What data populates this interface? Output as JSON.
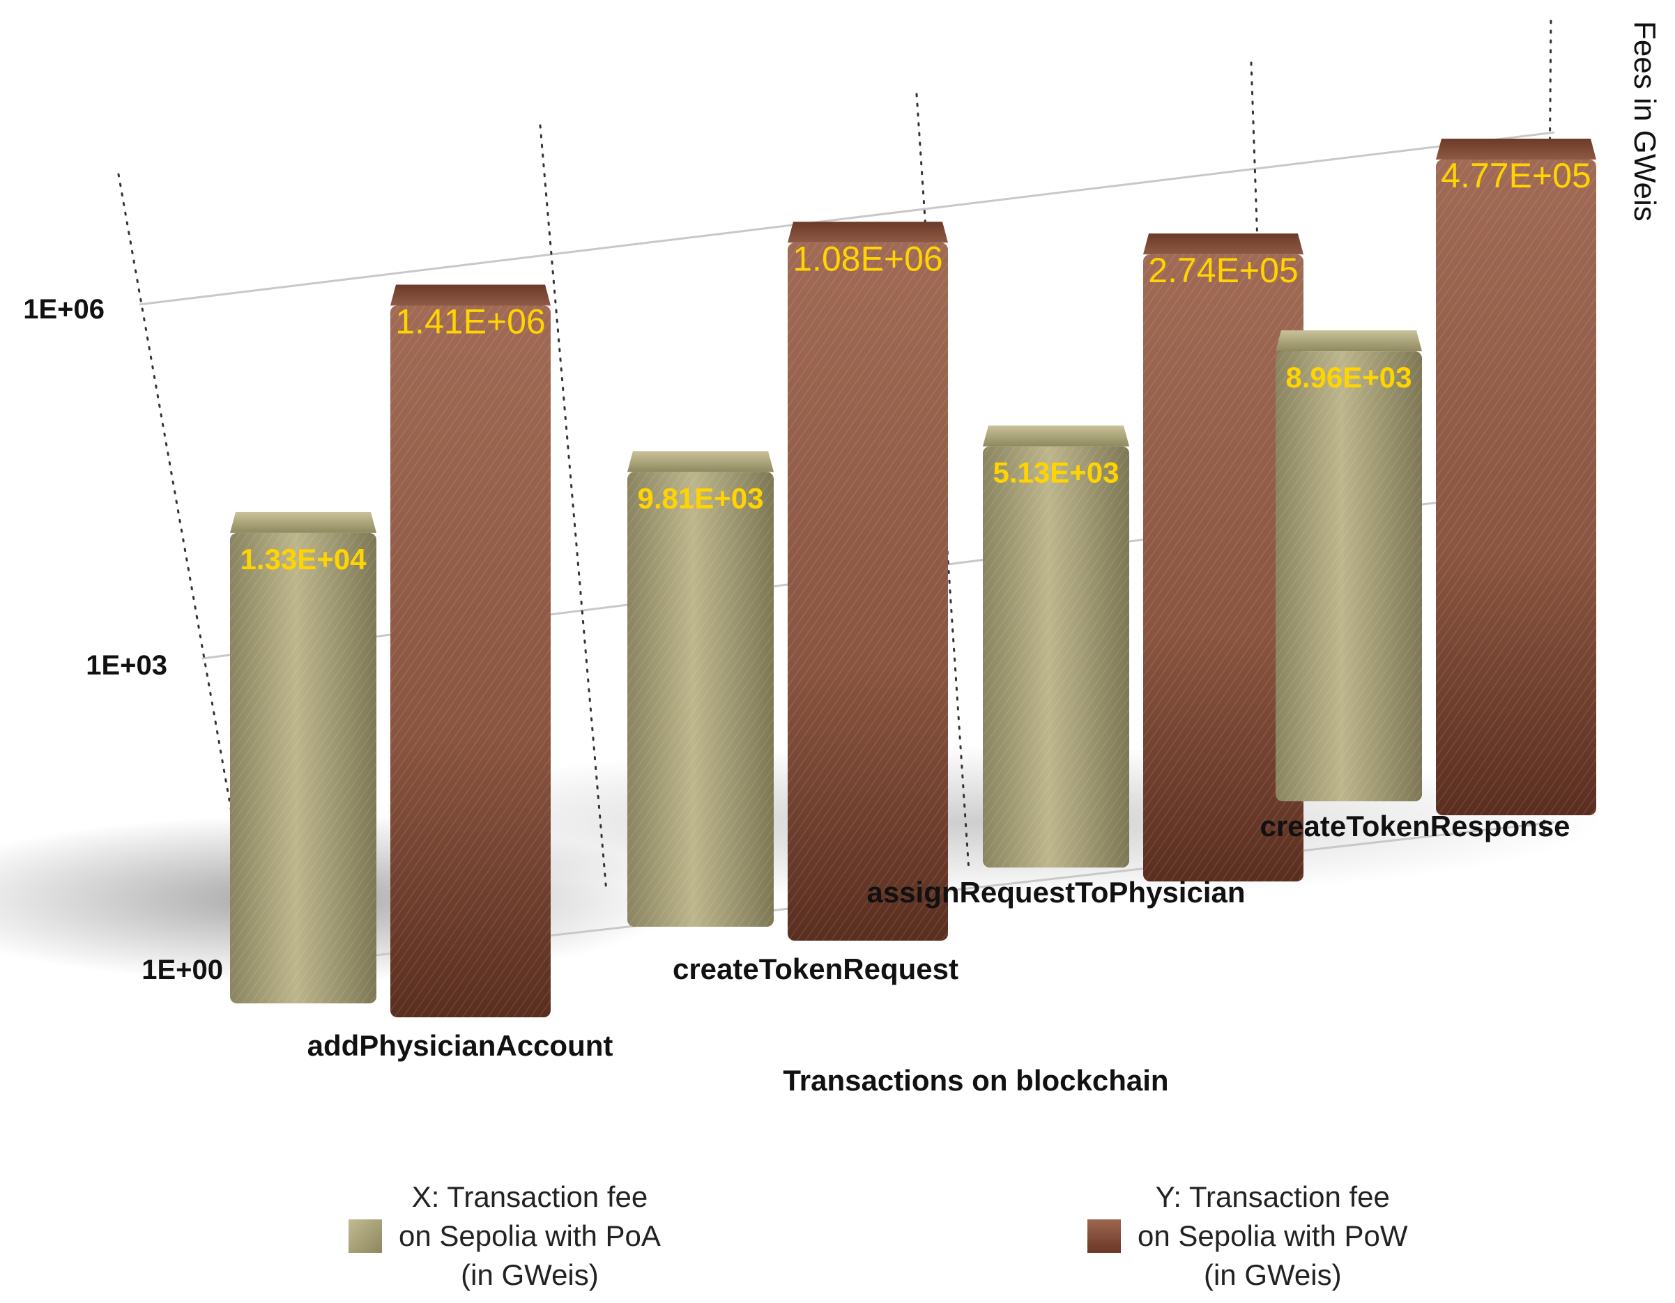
{
  "chart_data": {
    "type": "bar",
    "title": "",
    "xlabel": "Transactions on blockchain",
    "ylabel": "Fees in GWeis",
    "scale": "log",
    "ylim": [
      1,
      10000000
    ],
    "yticks": [
      {
        "value": 1,
        "label": "1E+00"
      },
      {
        "value": 1000,
        "label": "1E+03"
      },
      {
        "value": 1000000,
        "label": "1E+06"
      }
    ],
    "categories": [
      "addPhysicianAccount",
      "createTokenRequest",
      "assignRequestToPhysician",
      "createTokenResponse"
    ],
    "series": [
      {
        "name": "X: Transaction fee on Sepolia with PoA (in GWeis)",
        "color": "#a39c72",
        "values": [
          13300,
          9810,
          5130,
          8960
        ],
        "labels": [
          "1.33E+04",
          "9.81E+03",
          "5.13E+03",
          "8.96E+03"
        ]
      },
      {
        "name": "Y: Transaction fee on Sepolia with PoW (in GWeis)",
        "color": "#8a5540",
        "values": [
          1410000,
          1080000,
          274000,
          477000
        ],
        "labels": [
          "1.41E+06",
          "1.08E+06",
          "2.74E+05",
          "4.77E+05"
        ]
      }
    ],
    "grid": true,
    "legend_position": "bottom"
  },
  "legend": {
    "x": {
      "line1": "X: Transaction fee",
      "line2": "on Sepolia with PoA",
      "line3": "(in GWeis)"
    },
    "y": {
      "line1": "Y: Transaction fee",
      "line2": "on Sepolia with PoW",
      "line3": "(in GWeis)"
    }
  }
}
